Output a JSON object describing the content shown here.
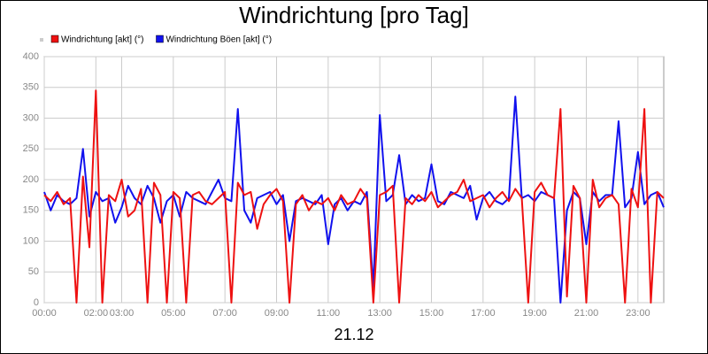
{
  "chart_data": {
    "type": "line",
    "title": "Windrichtung [pro Tag]",
    "xlabel": "21.12",
    "x": [
      0,
      0.25,
      0.5,
      0.75,
      1,
      1.25,
      1.5,
      1.75,
      2,
      2.25,
      2.5,
      2.75,
      3,
      3.25,
      3.5,
      3.75,
      4,
      4.25,
      4.5,
      4.75,
      5,
      5.25,
      5.5,
      5.75,
      6,
      6.25,
      6.5,
      6.75,
      7,
      7.25,
      7.5,
      7.75,
      8,
      8.25,
      8.5,
      8.75,
      9,
      9.25,
      9.5,
      9.75,
      10,
      10.25,
      10.5,
      10.75,
      11,
      11.25,
      11.5,
      11.75,
      12,
      12.25,
      12.5,
      12.75,
      13,
      13.25,
      13.5,
      13.75,
      14,
      14.25,
      14.5,
      14.75,
      15,
      15.25,
      15.5,
      15.75,
      16,
      16.25,
      16.5,
      16.75,
      17,
      17.25,
      17.5,
      17.75,
      18,
      18.25,
      18.5,
      18.75,
      19,
      19.25,
      19.5,
      19.75,
      20,
      20.25,
      20.5,
      20.75,
      21,
      21.25,
      21.5,
      21.75,
      22,
      22.25,
      22.5,
      22.75,
      23,
      23.25,
      23.5,
      23.75,
      24
    ],
    "series": [
      {
        "name": "Windrichtung [akt] (°)",
        "color": "#ee1111",
        "values": [
          175,
          165,
          180,
          160,
          170,
          0,
          205,
          90,
          345,
          0,
          175,
          165,
          200,
          140,
          150,
          185,
          0,
          195,
          175,
          0,
          180,
          170,
          0,
          175,
          180,
          165,
          160,
          170,
          180,
          0,
          195,
          175,
          180,
          120,
          160,
          175,
          185,
          165,
          0,
          160,
          175,
          150,
          165,
          160,
          170,
          150,
          175,
          160,
          165,
          185,
          170,
          0,
          175,
          180,
          190,
          0,
          170,
          160,
          175,
          165,
          180,
          155,
          165,
          175,
          180,
          200,
          165,
          170,
          175,
          155,
          170,
          180,
          165,
          185,
          170,
          0,
          180,
          195,
          175,
          170,
          315,
          10,
          190,
          170,
          0,
          200,
          155,
          170,
          175,
          160,
          0,
          185,
          155,
          315,
          0,
          180,
          170
        ]
      },
      {
        "name": "Windrichtung Böen [akt] (°)",
        "color": "#1111ee",
        "values": [
          180,
          150,
          175,
          165,
          160,
          170,
          250,
          140,
          180,
          165,
          170,
          130,
          155,
          190,
          170,
          160,
          190,
          170,
          130,
          165,
          175,
          140,
          180,
          170,
          165,
          160,
          180,
          200,
          170,
          165,
          315,
          150,
          130,
          170,
          175,
          180,
          160,
          175,
          100,
          165,
          170,
          165,
          160,
          175,
          95,
          160,
          170,
          150,
          165,
          160,
          180,
          25,
          305,
          165,
          175,
          240,
          160,
          175,
          165,
          170,
          225,
          165,
          160,
          180,
          175,
          170,
          190,
          135,
          170,
          180,
          165,
          160,
          170,
          335,
          170,
          175,
          165,
          180,
          175,
          170,
          0,
          150,
          180,
          170,
          95,
          180,
          165,
          175,
          175,
          295,
          155,
          170,
          245,
          160,
          175,
          180,
          155
        ]
      }
    ],
    "xlim": [
      0,
      24
    ],
    "xticks": [
      {
        "value": 0,
        "label": "00:00"
      },
      {
        "value": 2,
        "label": "02:00"
      },
      {
        "value": 3,
        "label": "03:00"
      },
      {
        "value": 5,
        "label": "05:00"
      },
      {
        "value": 7,
        "label": "07:00"
      },
      {
        "value": 9,
        "label": "09:00"
      },
      {
        "value": 11,
        "label": "11:00"
      },
      {
        "value": 13,
        "label": "13:00"
      },
      {
        "value": 15,
        "label": "15:00"
      },
      {
        "value": 17,
        "label": "17:00"
      },
      {
        "value": 19,
        "label": "19:00"
      },
      {
        "value": 21,
        "label": "21:00"
      },
      {
        "value": 23,
        "label": "23:00"
      }
    ],
    "ylim": [
      0,
      400
    ],
    "yticks": [
      0,
      50,
      100,
      150,
      200,
      250,
      300,
      350,
      400
    ],
    "grid": true
  }
}
